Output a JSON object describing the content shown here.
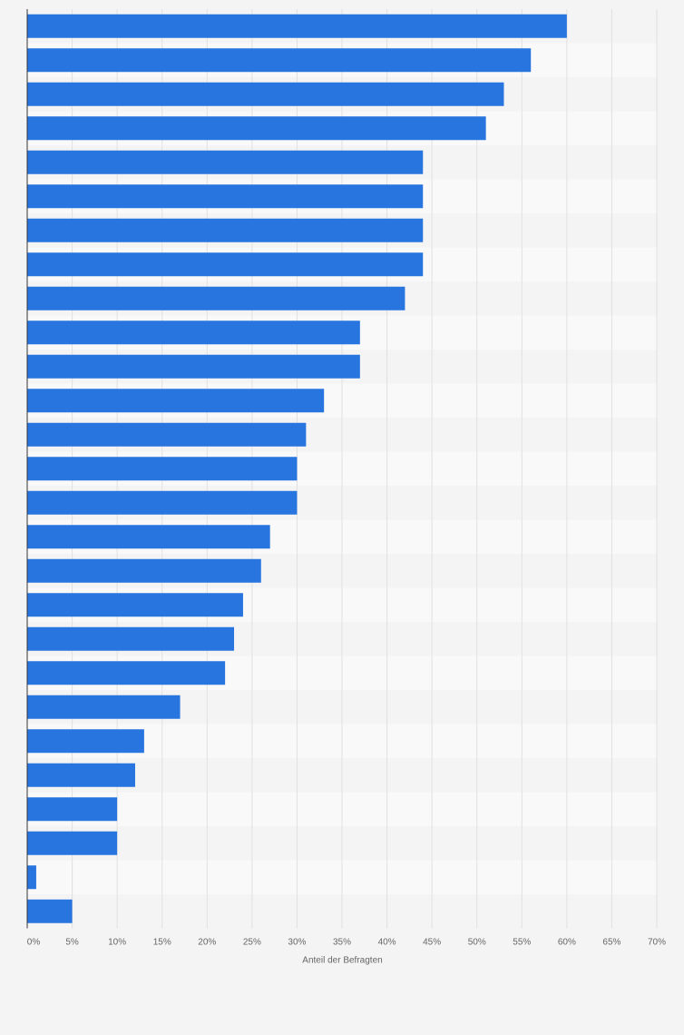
{
  "chart_data": {
    "type": "bar",
    "orientation": "horizontal",
    "xlabel": "Anteil der Befragten",
    "xlim": [
      0,
      70
    ],
    "x_ticks": [
      0,
      5,
      10,
      15,
      20,
      25,
      30,
      35,
      40,
      45,
      50,
      55,
      60,
      65,
      70
    ],
    "x_tick_labels": [
      "0%",
      "5%",
      "10%",
      "15%",
      "20%",
      "25%",
      "30%",
      "35%",
      "40%",
      "45%",
      "50%",
      "55%",
      "60%",
      "65%",
      "70%"
    ],
    "values": [
      60,
      56,
      53,
      51,
      44,
      44,
      44,
      44,
      42,
      37,
      37,
      33,
      31,
      30,
      30,
      27,
      26,
      24,
      23,
      22,
      17,
      13,
      12,
      10,
      10,
      1,
      5
    ],
    "grid": true,
    "bar_color": "#2875e0",
    "band_colors": [
      "#f4f4f4",
      "#f9f9f9"
    ],
    "gridline_color": "#e1e1e1"
  }
}
